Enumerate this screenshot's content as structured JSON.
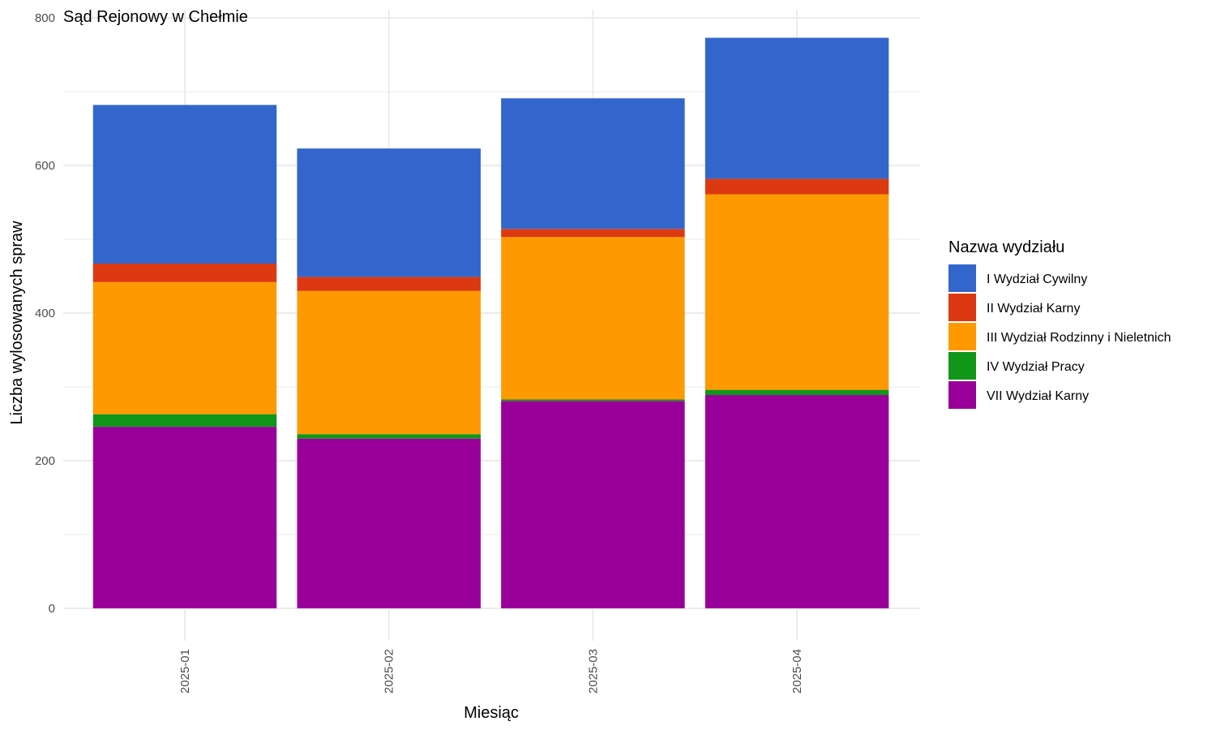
{
  "chart_data": {
    "type": "bar",
    "stacked": true,
    "title": "Sąd Rejonowy w Chełmie",
    "xlabel": "Miesiąc",
    "ylabel": "Liczba wylosowanych spraw",
    "ylim": [
      0,
      800
    ],
    "yticks": [
      "0",
      "200",
      "400",
      "600",
      "800"
    ],
    "grid": true,
    "legend_title": "Nazwa wydziału",
    "legend_position": "right",
    "categories": [
      "2025-01",
      "2025-02",
      "2025-03",
      "2025-04"
    ],
    "series": [
      {
        "name": "VII Wydział Karny",
        "color": "#990099",
        "values": [
          246,
          230,
          281,
          289
        ]
      },
      {
        "name": "IV Wydział Pracy",
        "color": "#109618",
        "values": [
          17,
          6,
          2,
          7
        ]
      },
      {
        "name": "III Wydział Rodzinny i Nieletnich",
        "color": "#FF9900",
        "values": [
          179,
          194,
          220,
          265
        ]
      },
      {
        "name": "II Wydział Karny",
        "color": "#DC3912",
        "values": [
          25,
          19,
          11,
          21
        ]
      },
      {
        "name": "I Wydział Cywilny",
        "color": "#3366CC",
        "values": [
          215,
          174,
          177,
          191
        ]
      }
    ],
    "legend_order": [
      "I Wydział Cywilny",
      "II Wydział Karny",
      "III Wydział Rodzinny i Nieletnich",
      "IV Wydział Pracy",
      "VII Wydział Karny"
    ]
  }
}
